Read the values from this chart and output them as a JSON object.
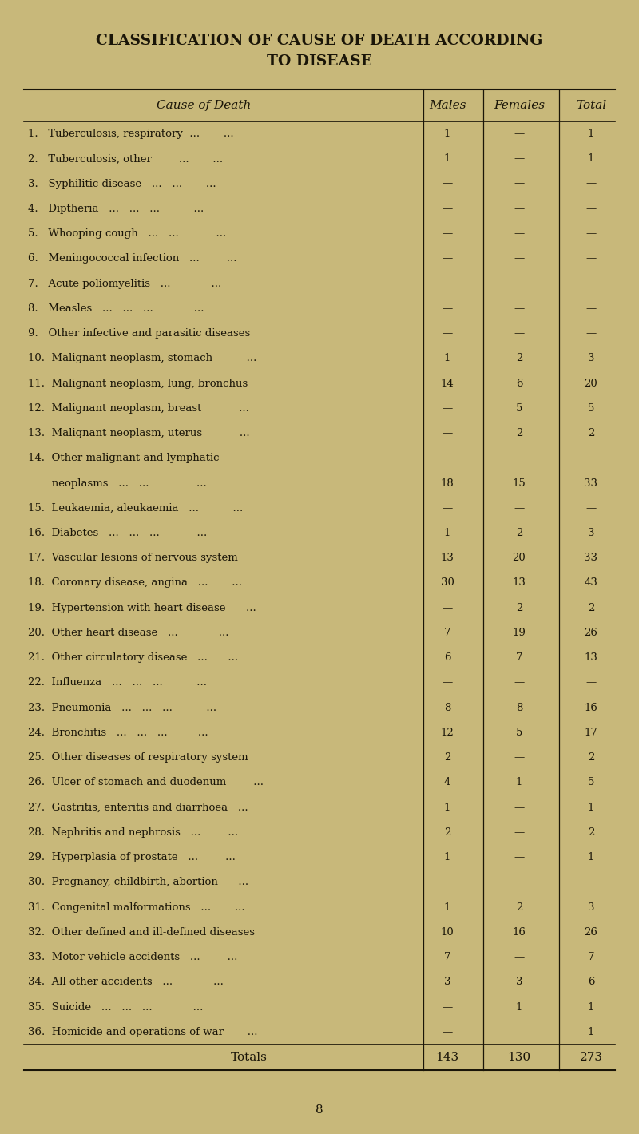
{
  "title_line1": "CLASSIFICATION OF CAUSE OF DEATH ACCORDING",
  "title_line2": "TO DISEASE",
  "background_color": "#c8b87a",
  "text_color": "#1a1508",
  "header": [
    "Cause of Death",
    "Males",
    "Females",
    "Total"
  ],
  "rows": [
    [
      "1.   Tuberculosis, respiratory  ...       ...",
      "1",
      "—",
      "1"
    ],
    [
      "2.   Tuberculosis, other        ...       ...",
      "1",
      "—",
      "1"
    ],
    [
      "3.   Syphilitic disease   ...   ...       ...",
      "—",
      "—",
      "—"
    ],
    [
      "4.   Diptheria   ...   ...   ...          ...",
      "—",
      "—",
      "—"
    ],
    [
      "5.   Whooping cough   ...   ...           ...",
      "—",
      "—",
      "—"
    ],
    [
      "6.   Meningococcal infection   ...        ...",
      "—",
      "—",
      "—"
    ],
    [
      "7.   Acute poliomyelitis   ...            ...",
      "—",
      "—",
      "—"
    ],
    [
      "8.   Measles   ...   ...   ...            ...",
      "—",
      "—",
      "—"
    ],
    [
      "9.   Other infective and parasitic diseases",
      "—",
      "—",
      "—"
    ],
    [
      "10.  Malignant neoplasm, stomach          ...",
      "1",
      "2",
      "3"
    ],
    [
      "11.  Malignant neoplasm, lung, bronchus",
      "14",
      "6",
      "20"
    ],
    [
      "12.  Malignant neoplasm, breast           ...",
      "—",
      "5",
      "5"
    ],
    [
      "13.  Malignant neoplasm, uterus           ...",
      "—",
      "2",
      "2"
    ],
    [
      "14.  Other malignant and lymphatic",
      "18",
      "15",
      "33"
    ],
    [
      "       neoplasms   ...   ...              ...",
      "",
      "",
      ""
    ],
    [
      "15.  Leukaemia, aleukaemia   ...          ...",
      "—",
      "—",
      "—"
    ],
    [
      "16.  Diabetes   ...   ...   ...           ...",
      "1",
      "2",
      "3"
    ],
    [
      "17.  Vascular lesions of nervous system",
      "13",
      "20",
      "33"
    ],
    [
      "18.  Coronary disease, angina   ...       ...",
      "30",
      "13",
      "43"
    ],
    [
      "19.  Hypertension with heart disease      ...",
      "—",
      "2",
      "2"
    ],
    [
      "20.  Other heart disease   ...            ...",
      "7",
      "19",
      "26"
    ],
    [
      "21.  Other circulatory disease   ...      ...",
      "6",
      "7",
      "13"
    ],
    [
      "22.  Influenza   ...   ...   ...          ...",
      "—",
      "—",
      "—"
    ],
    [
      "23.  Pneumonia   ...   ...   ...          ...",
      "8",
      "8",
      "16"
    ],
    [
      "24.  Bronchitis   ...   ...   ...         ...",
      "12",
      "5",
      "17"
    ],
    [
      "25.  Other diseases of respiratory system",
      "2",
      "—",
      "2"
    ],
    [
      "26.  Ulcer of stomach and duodenum        ...",
      "4",
      "1",
      "5"
    ],
    [
      "27.  Gastritis, enteritis and diarrhoea   ...",
      "1",
      "—",
      "1"
    ],
    [
      "28.  Nephritis and nephrosis   ...        ...",
      "2",
      "—",
      "2"
    ],
    [
      "29.  Hyperplasia of prostate   ...        ...",
      "1",
      "—",
      "1"
    ],
    [
      "30.  Pregnancy, childbirth, abortion      ...",
      "—",
      "—",
      "—"
    ],
    [
      "31.  Congenital malformations   ...       ...",
      "1",
      "2",
      "3"
    ],
    [
      "32.  Other defined and ill-defined diseases",
      "10",
      "16",
      "26"
    ],
    [
      "33.  Motor vehicle accidents   ...        ...",
      "7",
      "—",
      "7"
    ],
    [
      "34.  All other accidents   ...            ...",
      "3",
      "3",
      "6"
    ],
    [
      "35.  Suicide   ...   ...   ...            ...",
      "—",
      "1",
      "1"
    ],
    [
      "36.  Homicide and operations of war       ...",
      "—",
      " ",
      "1"
    ]
  ],
  "row14_continuation": true,
  "totals": [
    "Totals",
    "143",
    "130",
    "273"
  ],
  "page_number": "8"
}
